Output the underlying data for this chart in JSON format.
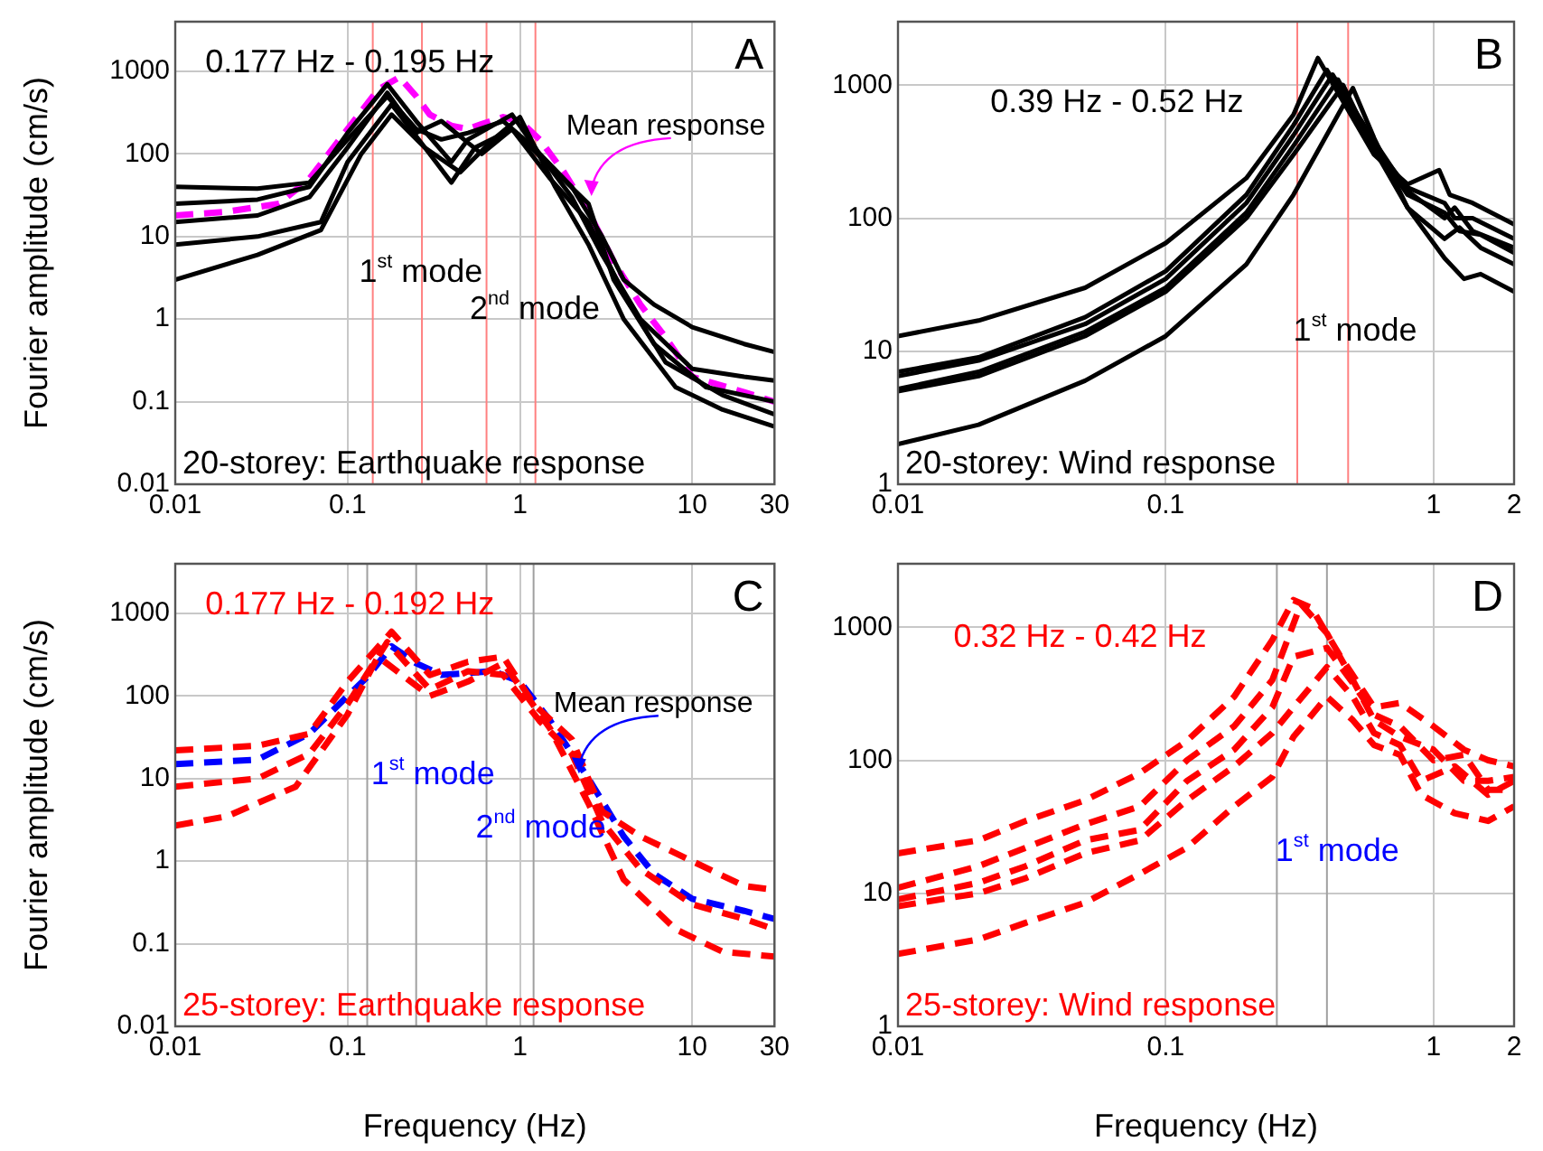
{
  "chart_data": [
    {
      "type": "line",
      "title": "A",
      "subtitle": "0.177 Hz - 0.195 Hz",
      "ylabel": "Fourier amplitude (cm/s)",
      "log": "xy",
      "grid": true,
      "legend": false,
      "line_style": "solid",
      "xlim": [
        0.01,
        30
      ],
      "xticks": [
        0.01,
        0.1,
        1,
        10,
        30
      ],
      "ylim": [
        0.01,
        4000
      ],
      "yticks": [
        0.01,
        0.1,
        1,
        10,
        100,
        1000
      ],
      "ref_lines": [
        {
          "axis": "x",
          "value": 0.14,
          "color": "#ff8080"
        },
        {
          "axis": "x",
          "value": 0.27,
          "color": "#ff8080"
        },
        {
          "axis": "x",
          "value": 0.64,
          "color": "#ff8080"
        },
        {
          "axis": "x",
          "value": 1.23,
          "color": "#ff8080"
        }
      ],
      "annotations": [
        "20-storey: Earthquake response",
        "1$^{st}$ mode",
        "2$^{nd}$ mode",
        {
          "text": "Mean response",
          "x": 2.6,
          "y": 31
        }
      ],
      "series": [
        {
          "color": "#000000",
          "x": [
            0.01,
            0.03,
            0.06,
            0.1,
            0.17,
            0.25,
            0.35,
            0.5,
            0.8,
            1.2,
            2,
            3,
            4,
            6,
            10,
            20,
            30
          ],
          "values": [
            40,
            38,
            45,
            150,
            500,
            200,
            150,
            180,
            250,
            120,
            40,
            10,
            3,
            1.5,
            0.8,
            0.5,
            0.4
          ]
        },
        {
          "color": "#000000",
          "x": [
            0.01,
            0.03,
            0.06,
            0.1,
            0.17,
            0.25,
            0.4,
            0.5,
            0.9,
            1.3,
            2,
            3,
            5,
            10,
            20,
            30
          ],
          "values": [
            25,
            28,
            40,
            180,
            700,
            250,
            80,
            150,
            300,
            100,
            30,
            6,
            1,
            0.25,
            0.2,
            0.18
          ]
        },
        {
          "color": "#000000",
          "x": [
            0.01,
            0.03,
            0.07,
            0.1,
            0.18,
            0.3,
            0.4,
            0.55,
            0.9,
            1.5,
            2.5,
            4,
            7,
            15,
            30
          ],
          "values": [
            8,
            10,
            15,
            80,
            400,
            100,
            45,
            120,
            200,
            50,
            15,
            2,
            0.3,
            0.12,
            0.07
          ]
        },
        {
          "color": "#000000",
          "x": [
            0.01,
            0.03,
            0.07,
            0.12,
            0.18,
            0.28,
            0.45,
            0.7,
            1,
            1.6,
            2.5,
            4,
            8,
            15,
            30
          ],
          "values": [
            3,
            6,
            12,
            100,
            300,
            120,
            60,
            150,
            280,
            40,
            8,
            1,
            0.15,
            0.08,
            0.05
          ]
        },
        {
          "color": "#000000",
          "x": [
            0.01,
            0.03,
            0.06,
            0.1,
            0.17,
            0.25,
            0.35,
            0.6,
            0.9,
            1.5,
            2.5,
            3.5,
            6,
            12,
            30
          ],
          "values": [
            15,
            18,
            30,
            120,
            550,
            180,
            250,
            100,
            200,
            70,
            25,
            3,
            0.5,
            0.15,
            0.1
          ]
        },
        {
          "color": "#ff00ff",
          "line_style": "dashed",
          "x": [
            0.01,
            0.02,
            0.04,
            0.06,
            0.1,
            0.15,
            0.2,
            0.25,
            0.3,
            0.4,
            0.5,
            0.6,
            0.8,
            1,
            1.3,
            1.8,
            2.5,
            3.5,
            5,
            7,
            10,
            20,
            30
          ],
          "values": [
            18,
            20,
            25,
            50,
            200,
            600,
            850,
            500,
            300,
            220,
            200,
            230,
            280,
            250,
            150,
            60,
            20,
            5,
            1.5,
            0.6,
            0.2,
            0.13,
            0.1
          ]
        }
      ]
    },
    {
      "type": "line",
      "title": "B",
      "subtitle": "0.39 Hz - 0.52 Hz",
      "log": "xy",
      "grid": true,
      "legend": false,
      "line_style": "solid",
      "xlim": [
        0.01,
        2
      ],
      "xticks": [
        0.01,
        0.1,
        1,
        2
      ],
      "ylim": [
        1,
        3000
      ],
      "yticks": [
        1,
        10,
        100,
        1000
      ],
      "ref_lines": [
        {
          "axis": "x",
          "value": 0.31,
          "color": "#ff8080"
        },
        {
          "axis": "x",
          "value": 0.48,
          "color": "#ff8080"
        }
      ],
      "annotations": [
        "20-storey: Wind response",
        "1$^{st}$ mode"
      ],
      "series": [
        {
          "color": "#000000",
          "x": [
            0.01,
            0.02,
            0.05,
            0.1,
            0.2,
            0.3,
            0.37,
            0.6,
            0.8,
            1.05,
            1.15,
            1.4,
            2
          ],
          "values": [
            13,
            17,
            30,
            65,
            200,
            600,
            1600,
            300,
            180,
            230,
            150,
            130,
            90
          ]
        },
        {
          "color": "#000000",
          "x": [
            0.01,
            0.02,
            0.05,
            0.1,
            0.2,
            0.3,
            0.4,
            0.6,
            0.8,
            1.1,
            1.2,
            1.4,
            2
          ],
          "values": [
            7,
            9,
            18,
            40,
            150,
            500,
            1300,
            350,
            170,
            130,
            100,
            100,
            70
          ]
        },
        {
          "color": "#000000",
          "x": [
            0.01,
            0.02,
            0.05,
            0.1,
            0.2,
            0.3,
            0.42,
            0.6,
            0.8,
            1.1,
            1.2,
            1.4,
            2
          ],
          "values": [
            6.5,
            8.5,
            16,
            35,
            130,
            420,
            1200,
            380,
            160,
            100,
            120,
            80,
            60
          ]
        },
        {
          "color": "#000000",
          "x": [
            0.01,
            0.02,
            0.05,
            0.1,
            0.2,
            0.3,
            0.44,
            0.6,
            0.8,
            1.1,
            1.25,
            1.5,
            2
          ],
          "values": [
            5.2,
            7,
            14,
            30,
            110,
            350,
            1100,
            350,
            150,
            110,
            80,
            75,
            55
          ]
        },
        {
          "color": "#000000",
          "x": [
            0.01,
            0.02,
            0.05,
            0.1,
            0.2,
            0.3,
            0.46,
            0.6,
            0.8,
            1.1,
            1.25,
            1.5,
            2
          ],
          "values": [
            5,
            6.5,
            13,
            28,
            100,
            300,
            1000,
            330,
            120,
            70,
            85,
            60,
            45
          ]
        },
        {
          "color": "#000000",
          "x": [
            0.01,
            0.02,
            0.05,
            0.1,
            0.2,
            0.3,
            0.5,
            0.6,
            0.8,
            1.1,
            1.3,
            1.5,
            2
          ],
          "values": [
            2,
            2.8,
            6,
            13,
            45,
            150,
            950,
            400,
            120,
            50,
            35,
            38,
            28
          ]
        }
      ]
    },
    {
      "type": "line",
      "title": "C",
      "subtitle": "0.177 Hz - 0.192 Hz",
      "xlabel": "Frequency (Hz)",
      "ylabel": "Fourier amplitude (cm/s)",
      "log": "xy",
      "grid": true,
      "legend": false,
      "line_style": "dashed",
      "xlim": [
        0.01,
        30
      ],
      "xticks": [
        0.01,
        0.1,
        1,
        10,
        30
      ],
      "ylim": [
        0.01,
        4000
      ],
      "yticks": [
        0.01,
        0.1,
        1,
        10,
        100,
        1000
      ],
      "ref_lines": [
        {
          "axis": "x",
          "value": 0.13,
          "color": "#a0a0a0"
        },
        {
          "axis": "x",
          "value": 0.25,
          "color": "#a0a0a0"
        },
        {
          "axis": "x",
          "value": 0.64,
          "color": "#a0a0a0"
        },
        {
          "axis": "x",
          "value": 1.2,
          "color": "#a0a0a0"
        }
      ],
      "annotations": [
        "25-storey: Earthquake response",
        "1$^{st}$ mode",
        "2$^{nd}$ mode",
        {
          "text": "Mean response",
          "x": 2.2,
          "y": 11.5
        }
      ],
      "series": [
        {
          "color": "#ff0000",
          "x": [
            0.01,
            0.03,
            0.06,
            0.1,
            0.18,
            0.3,
            0.5,
            0.8,
            1.2,
            2,
            3,
            5,
            10,
            20,
            30
          ],
          "values": [
            22,
            25,
            35,
            150,
            600,
            180,
            260,
            300,
            80,
            30,
            4,
            2,
            1,
            0.5,
            0.45
          ]
        },
        {
          "color": "#ff0000",
          "x": [
            0.01,
            0.03,
            0.06,
            0.1,
            0.17,
            0.3,
            0.5,
            0.8,
            1.3,
            2,
            3,
            5,
            10,
            20,
            30
          ],
          "values": [
            8,
            10,
            20,
            80,
            450,
            120,
            200,
            180,
            50,
            20,
            3,
            0.8,
            0.3,
            0.2,
            0.15
          ]
        },
        {
          "color": "#ff0000",
          "x": [
            0.01,
            0.02,
            0.05,
            0.1,
            0.15,
            0.3,
            0.5,
            0.8,
            1.5,
            2.5,
            4,
            8,
            15,
            30
          ],
          "values": [
            2.7,
            3.5,
            8,
            60,
            300,
            100,
            150,
            250,
            40,
            5,
            0.6,
            0.15,
            0.08,
            0.07
          ]
        },
        {
          "color": "#0000ff",
          "x": [
            0.01,
            0.03,
            0.06,
            0.1,
            0.13,
            0.18,
            0.25,
            0.35,
            0.5,
            0.7,
            1,
            1.5,
            2.5,
            4,
            6,
            10,
            20,
            30
          ],
          "values": [
            15,
            17,
            35,
            100,
            170,
            400,
            250,
            180,
            190,
            200,
            150,
            50,
            10,
            2,
            0.7,
            0.35,
            0.25,
            0.2
          ]
        }
      ]
    },
    {
      "type": "line",
      "title": "D",
      "subtitle": "0.32 Hz - 0.42 Hz",
      "xlabel": "Frequency (Hz)",
      "log": "xy",
      "grid": true,
      "legend": false,
      "line_style": "dashed",
      "xlim": [
        0.01,
        2
      ],
      "xticks": [
        0.01,
        0.1,
        1,
        2
      ],
      "ylim": [
        1,
        3000
      ],
      "yticks": [
        1,
        10,
        100,
        1000
      ],
      "ref_lines": [
        {
          "axis": "x",
          "value": 0.26,
          "color": "#a0a0a0"
        },
        {
          "axis": "x",
          "value": 0.4,
          "color": "#a0a0a0"
        }
      ],
      "annotations": [
        "25-storey: Wind response",
        "1$^{st}$ mode"
      ],
      "series": [
        {
          "color": "#ff0000",
          "x": [
            0.01,
            0.02,
            0.03,
            0.05,
            0.08,
            0.12,
            0.18,
            0.25,
            0.3,
            0.35,
            0.45,
            0.6,
            0.75,
            1,
            1.3,
            1.6,
            2
          ],
          "values": [
            20,
            25,
            35,
            50,
            80,
            140,
            300,
            800,
            1600,
            1400,
            600,
            250,
            270,
            180,
            120,
            100,
            90
          ]
        },
        {
          "color": "#ff0000",
          "x": [
            0.01,
            0.02,
            0.03,
            0.05,
            0.08,
            0.12,
            0.18,
            0.25,
            0.32,
            0.4,
            0.5,
            0.6,
            0.75,
            1,
            1.3,
            1.6,
            2
          ],
          "values": [
            11,
            16,
            22,
            33,
            45,
            100,
            180,
            400,
            1500,
            900,
            400,
            200,
            150,
            120,
            70,
            70,
            75
          ]
        },
        {
          "color": "#ff0000",
          "x": [
            0.01,
            0.02,
            0.03,
            0.05,
            0.08,
            0.12,
            0.18,
            0.25,
            0.3,
            0.4,
            0.5,
            0.6,
            0.75,
            1,
            1.3,
            1.6,
            2
          ],
          "values": [
            9,
            12,
            16,
            25,
            30,
            70,
            120,
            250,
            600,
            700,
            380,
            220,
            180,
            100,
            110,
            60,
            60
          ]
        },
        {
          "color": "#ff0000",
          "x": [
            0.01,
            0.02,
            0.03,
            0.05,
            0.08,
            0.12,
            0.18,
            0.25,
            0.3,
            0.4,
            0.5,
            0.6,
            0.75,
            0.9,
            1.2,
            1.6,
            2
          ],
          "values": [
            8,
            10,
            13,
            20,
            25,
            50,
            90,
            160,
            250,
            500,
            300,
            160,
            130,
            70,
            90,
            55,
            70
          ]
        },
        {
          "color": "#ff0000",
          "x": [
            0.01,
            0.02,
            0.03,
            0.05,
            0.08,
            0.12,
            0.18,
            0.25,
            0.3,
            0.4,
            0.5,
            0.6,
            0.75,
            0.9,
            1.2,
            1.6,
            2
          ],
          "values": [
            3.5,
            4.5,
            6,
            8.5,
            14,
            22,
            45,
            75,
            150,
            300,
            200,
            130,
            110,
            55,
            40,
            35,
            45
          ]
        }
      ]
    }
  ]
}
